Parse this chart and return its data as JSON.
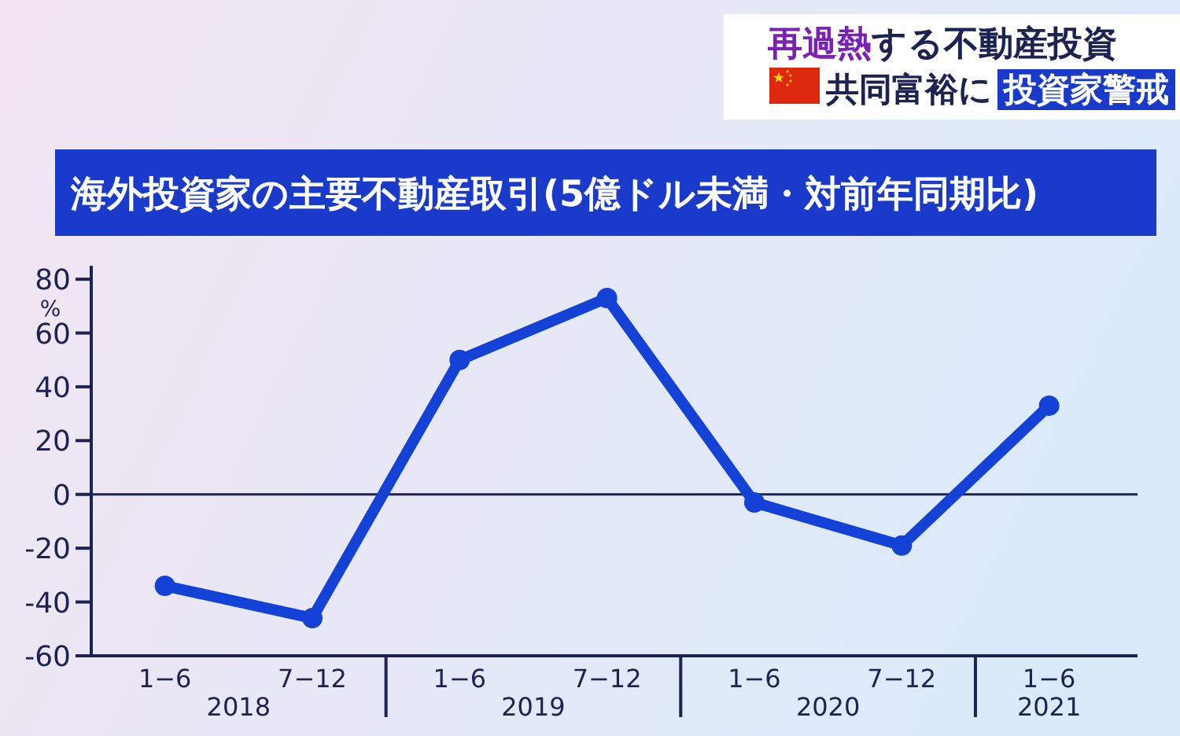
{
  "chart_data": {
    "type": "line",
    "title": "海外投資家の主要不動産取引(5億ドル未満・対前年同期比)",
    "ylabel": "%",
    "categories": [
      "1−6",
      "7−12",
      "1−6",
      "7−12",
      "1−6",
      "7−12",
      "1−6"
    ],
    "series": [
      {
        "color": "#1441d6",
        "values": [
          -34,
          -46,
          50,
          73,
          -3,
          -19,
          33
        ]
      }
    ],
    "ylim": [
      -60,
      85
    ],
    "yticks": [
      -60,
      -40,
      -20,
      0,
      20,
      40,
      60,
      80
    ],
    "ref_lines": [
      {
        "axis": "y",
        "value": 0,
        "color": "#1c2350"
      }
    ],
    "marker": "circle",
    "line_style": "solid",
    "annotations": [
      "再過熱",
      "する不動産投資",
      "共同富裕に",
      "投資家警戒",
      "2018",
      "2019",
      "2020",
      "2021"
    ]
  }
}
